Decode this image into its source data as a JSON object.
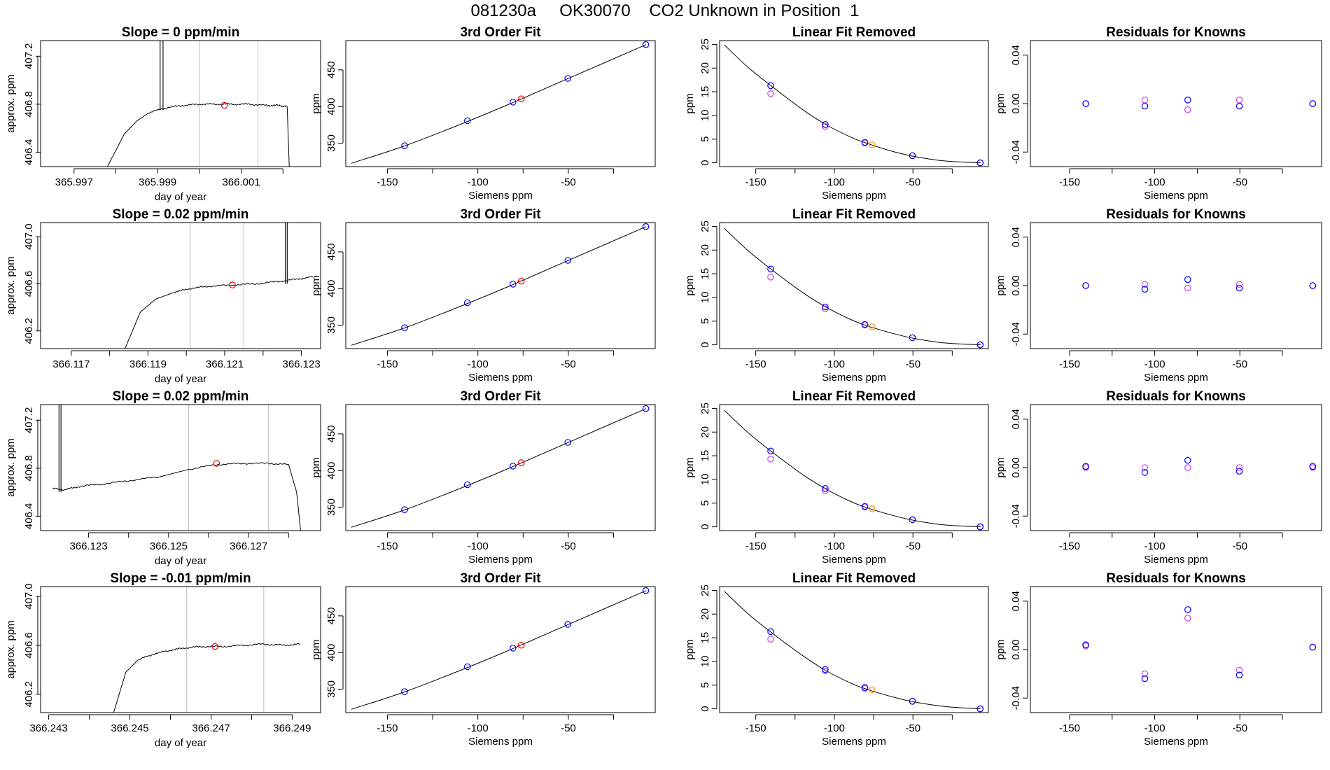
{
  "page_title": "081230a     OK30070    CO2 Unknown in Position  1",
  "colors": {
    "line": "#000000",
    "vline": "#bebebe",
    "blue": "#0000ff",
    "orange": "#ff8c00",
    "violet": "#cc44ee",
    "red": "#ff0000"
  },
  "rows": [
    {
      "slope_title": "Slope =  0  ppm/min",
      "x_ticks": [
        "365.997",
        "365.999",
        "366.001"
      ],
      "y_ticks": [
        "406.4",
        "406.8",
        "407.2"
      ]
    },
    {
      "slope_title": "Slope =  0.02  ppm/min",
      "x_ticks": [
        "366.117",
        "366.119",
        "366.121",
        "366.123"
      ],
      "y_ticks": [
        "406.2",
        "406.6",
        "407.0"
      ]
    },
    {
      "slope_title": "Slope =  0.02  ppm/min",
      "x_ticks": [
        "366.123",
        "366.125",
        "366.127"
      ],
      "y_ticks": [
        "406.4",
        "406.8",
        "407.2"
      ]
    },
    {
      "slope_title": "Slope =  -0.01  ppm/min",
      "x_ticks": [
        "366.243",
        "366.245",
        "366.247",
        "366.249"
      ],
      "y_ticks": [
        "406.2",
        "406.6",
        "407.0"
      ]
    }
  ],
  "fit_panel": {
    "title": "3rd Order Fit",
    "xlabel": "Siemens ppm",
    "ylabel": "ppm",
    "x_ticks": [
      "-150",
      "-100",
      "-50"
    ],
    "y_ticks": [
      "350",
      "400",
      "450"
    ]
  },
  "lin_panel": {
    "title": "Linear Fit Removed",
    "xlabel": "Siemens ppm",
    "ylabel": "ppm",
    "x_ticks": [
      "-150",
      "-100",
      "-50"
    ],
    "y_ticks": [
      "0",
      "5",
      "10",
      "15",
      "20",
      "25"
    ]
  },
  "res_panel": {
    "title": "Residuals for Knowns",
    "xlabel": "Siemens ppm",
    "ylabel": "ppm",
    "x_ticks": [
      "-150",
      "-100",
      "-50"
    ],
    "y_ticks": [
      "-0.04",
      "0.00",
      "0.04"
    ]
  },
  "trace_panel": {
    "xlabel": "day of year",
    "ylabel": "approx. ppm"
  },
  "chart_data": [
    {
      "type": "line",
      "row": 1,
      "xlim": [
        365.9962,
        366.0029
      ],
      "ylim": [
        406.28,
        407.33
      ],
      "vlines": [
        366.0,
        366.0014
      ],
      "marker": [
        366.0006,
        406.79
      ],
      "spikes": [
        [
          365.99906,
          407.33
        ],
        [
          365.99913,
          407.33
        ]
      ],
      "trace": [
        [
          365.9978,
          406.28
        ],
        [
          365.9982,
          406.55
        ],
        [
          365.9985,
          406.66
        ],
        [
          365.9988,
          406.73
        ],
        [
          365.9992,
          406.77
        ],
        [
          365.9996,
          406.79
        ],
        [
          366.0,
          406.8
        ],
        [
          366.0004,
          406.8
        ],
        [
          366.0008,
          406.8
        ],
        [
          366.0012,
          406.8
        ],
        [
          366.0016,
          406.79
        ],
        [
          366.0019,
          406.79
        ],
        [
          366.0021,
          406.78
        ],
        [
          366.00215,
          406.28
        ]
      ]
    },
    {
      "type": "line",
      "row": 2,
      "xlim": [
        366.1162,
        366.1235
      ],
      "ylim": [
        406.05,
        407.12
      ],
      "vlines": [
        366.1201,
        366.1215
      ],
      "marker": [
        366.1212,
        406.59
      ],
      "spikes": [
        [
          366.12258,
          407.12
        ],
        [
          366.12263,
          407.12
        ]
      ],
      "trace": [
        [
          366.1184,
          406.05
        ],
        [
          366.1188,
          406.36
        ],
        [
          366.1192,
          406.47
        ],
        [
          366.1197,
          406.53
        ],
        [
          366.1201,
          406.56
        ],
        [
          366.1206,
          406.58
        ],
        [
          366.1212,
          406.59
        ],
        [
          366.1218,
          406.6
        ],
        [
          366.1224,
          406.62
        ],
        [
          366.1229,
          406.64
        ],
        [
          366.1233,
          406.66
        ]
      ]
    },
    {
      "type": "line",
      "row": 3,
      "xlim": [
        366.1218,
        366.1288
      ],
      "ylim": [
        406.28,
        407.33
      ],
      "vlines": [
        366.1255,
        366.1275
      ],
      "marker": [
        366.1262,
        406.84
      ],
      "spikes": [
        [
          366.12226,
          407.33
        ],
        [
          366.12231,
          407.33
        ]
      ],
      "trace": [
        [
          366.1221,
          406.63
        ],
        [
          366.1224,
          406.62
        ],
        [
          366.1228,
          406.65
        ],
        [
          366.1234,
          406.67
        ],
        [
          366.1241,
          406.7
        ],
        [
          366.1248,
          406.73
        ],
        [
          366.1255,
          406.79
        ],
        [
          366.1262,
          406.83
        ],
        [
          366.1268,
          406.84
        ],
        [
          366.1275,
          406.84
        ],
        [
          366.128,
          406.83
        ],
        [
          366.1282,
          406.6
        ],
        [
          366.1283,
          406.28
        ]
      ]
    },
    {
      "type": "line",
      "row": 4,
      "xlim": [
        366.2428,
        366.2497
      ],
      "ylim": [
        406.05,
        407.08
      ],
      "vlines": [
        366.2464,
        366.2483
      ],
      "marker": [
        366.2471,
        406.59
      ],
      "spikes": [],
      "trace": [
        [
          366.2446,
          406.05
        ],
        [
          366.2449,
          406.38
        ],
        [
          366.2452,
          406.48
        ],
        [
          366.2456,
          406.53
        ],
        [
          366.246,
          406.56
        ],
        [
          366.2464,
          406.58
        ],
        [
          366.2468,
          406.59
        ],
        [
          366.2473,
          406.59
        ],
        [
          366.2478,
          406.6
        ],
        [
          366.2483,
          406.61
        ],
        [
          366.2488,
          406.6
        ],
        [
          366.2492,
          406.61
        ]
      ]
    },
    {
      "type": "scatter",
      "row": 1,
      "panel": "3rd Order Fit",
      "xlim": [
        -173,
        -2
      ],
      "ylim": [
        318,
        490
      ],
      "curve": [
        [
          -170,
          322.5
        ],
        [
          -140,
          346.7
        ],
        [
          -105,
          380.3
        ],
        [
          -80,
          406.1
        ],
        [
          -50,
          438.3
        ],
        [
          -7,
          484.6
        ]
      ],
      "knowns": [
        [
          -140.5,
          346.5
        ],
        [
          -105.8,
          380.6
        ],
        [
          -80.6,
          406.0
        ],
        [
          -50.3,
          438.4
        ],
        [
          -7.2,
          484.6
        ]
      ],
      "unknown": [
        -76.0,
        410.5
      ]
    },
    {
      "type": "scatter",
      "row": 1,
      "panel": "Linear Fit Removed",
      "xlim": [
        -173,
        -2
      ],
      "ylim": [
        -0.8,
        25.8
      ],
      "curve": [
        [
          -170,
          24.9
        ],
        [
          -155,
          20.2
        ],
        [
          -140,
          16.2
        ],
        [
          -120,
          11.2
        ],
        [
          -105,
          8.0
        ],
        [
          -90,
          5.5
        ],
        [
          -80,
          4.2
        ],
        [
          -65,
          2.6
        ],
        [
          -50,
          1.4
        ],
        [
          -30,
          0.4
        ],
        [
          -7,
          0.0
        ]
      ],
      "knowns": [
        [
          -140.5,
          16.3
        ],
        [
          -105.8,
          8.1
        ],
        [
          -80.6,
          4.3
        ],
        [
          -50.3,
          1.5
        ],
        [
          -7.2,
          0.0
        ]
      ],
      "knowns_alt": [
        [
          -140.5,
          14.6
        ],
        [
          -105.8,
          7.7
        ],
        [
          -80.6,
          4.2
        ],
        [
          -50.3,
          1.5
        ],
        [
          -7.2,
          0.0
        ]
      ],
      "unknown": [
        -76.0,
        3.8
      ]
    },
    {
      "type": "scatter",
      "row": 1,
      "panel": "Residuals for Knowns",
      "xlim": [
        -173,
        -2
      ],
      "ylim": [
        -0.052,
        0.052
      ],
      "knowns": [
        [
          -140.5,
          0.0
        ],
        [
          -105.8,
          -0.002
        ],
        [
          -80.6,
          0.003
        ],
        [
          -50.3,
          -0.002
        ],
        [
          -7.2,
          0.0
        ]
      ],
      "knowns_alt": [
        [
          -140.5,
          0.0
        ],
        [
          -105.8,
          0.003
        ],
        [
          -80.6,
          -0.005
        ],
        [
          -50.3,
          0.003
        ],
        [
          -7.2,
          0.0
        ]
      ]
    },
    {
      "type": "scatter",
      "row": 2,
      "panel": "3rd Order Fit",
      "xlim": [
        -173,
        -2
      ],
      "ylim": [
        318,
        490
      ],
      "curve": [
        [
          -170,
          322.5
        ],
        [
          -140,
          346.7
        ],
        [
          -105,
          380.3
        ],
        [
          -80,
          406.1
        ],
        [
          -50,
          438.3
        ],
        [
          -7,
          484.6
        ]
      ],
      "knowns": [
        [
          -140.5,
          346.5
        ],
        [
          -105.8,
          380.6
        ],
        [
          -80.6,
          406.0
        ],
        [
          -50.3,
          438.4
        ],
        [
          -7.2,
          484.6
        ]
      ],
      "unknown": [
        -76.0,
        410.1
      ]
    },
    {
      "type": "scatter",
      "row": 2,
      "panel": "Linear Fit Removed",
      "xlim": [
        -173,
        -2
      ],
      "ylim": [
        -0.8,
        25.8
      ],
      "curve": [
        [
          -170,
          24.6
        ],
        [
          -155,
          19.9
        ],
        [
          -140,
          15.9
        ],
        [
          -120,
          11.0
        ],
        [
          -105,
          7.9
        ],
        [
          -90,
          5.4
        ],
        [
          -80,
          4.1
        ],
        [
          -65,
          2.6
        ],
        [
          -50,
          1.4
        ],
        [
          -30,
          0.4
        ],
        [
          -7,
          0.0
        ]
      ],
      "knowns": [
        [
          -140.5,
          16.0
        ],
        [
          -105.8,
          8.0
        ],
        [
          -80.6,
          4.3
        ],
        [
          -50.3,
          1.5
        ],
        [
          -7.2,
          0.0
        ]
      ],
      "knowns_alt": [
        [
          -140.5,
          14.3
        ],
        [
          -105.8,
          7.6
        ],
        [
          -80.6,
          4.2
        ],
        [
          -50.3,
          1.5
        ],
        [
          -7.2,
          0.0
        ]
      ],
      "unknown": [
        -76.0,
        3.8
      ]
    },
    {
      "type": "scatter",
      "row": 2,
      "panel": "Residuals for Knowns",
      "xlim": [
        -173,
        -2
      ],
      "ylim": [
        -0.052,
        0.052
      ],
      "knowns": [
        [
          -140.5,
          0.0
        ],
        [
          -105.8,
          -0.003
        ],
        [
          -80.6,
          0.005
        ],
        [
          -50.3,
          -0.002
        ],
        [
          -7.2,
          0.0
        ]
      ],
      "knowns_alt": [
        [
          -140.5,
          0.0
        ],
        [
          -105.8,
          0.001
        ],
        [
          -80.6,
          -0.002
        ],
        [
          -50.3,
          0.001
        ],
        [
          -7.2,
          0.0
        ]
      ]
    },
    {
      "type": "scatter",
      "row": 3,
      "panel": "3rd Order Fit",
      "xlim": [
        -173,
        -2
      ],
      "ylim": [
        318,
        490
      ],
      "curve": [
        [
          -170,
          322.5
        ],
        [
          -140,
          346.7
        ],
        [
          -105,
          380.3
        ],
        [
          -80,
          406.1
        ],
        [
          -50,
          438.3
        ],
        [
          -7,
          484.6
        ]
      ],
      "knowns": [
        [
          -140.5,
          346.5
        ],
        [
          -105.8,
          380.6
        ],
        [
          -80.6,
          406.0
        ],
        [
          -50.3,
          438.4
        ],
        [
          -7.2,
          484.6
        ]
      ],
      "unknown": [
        -76.0,
        410.6
      ]
    },
    {
      "type": "scatter",
      "row": 3,
      "panel": "Linear Fit Removed",
      "xlim": [
        -173,
        -2
      ],
      "ylim": [
        -0.8,
        25.8
      ],
      "curve": [
        [
          -170,
          24.6
        ],
        [
          -155,
          19.9
        ],
        [
          -140,
          15.9
        ],
        [
          -120,
          11.0
        ],
        [
          -105,
          7.9
        ],
        [
          -90,
          5.4
        ],
        [
          -80,
          4.1
        ],
        [
          -65,
          2.6
        ],
        [
          -50,
          1.4
        ],
        [
          -30,
          0.4
        ],
        [
          -7,
          0.0
        ]
      ],
      "knowns": [
        [
          -140.5,
          16.0
        ],
        [
          -105.8,
          8.1
        ],
        [
          -80.6,
          4.3
        ],
        [
          -50.3,
          1.5
        ],
        [
          -7.2,
          0.0
        ]
      ],
      "knowns_alt": [
        [
          -140.5,
          14.3
        ],
        [
          -105.8,
          7.6
        ],
        [
          -80.6,
          4.2
        ],
        [
          -50.3,
          1.5
        ],
        [
          -7.2,
          0.0
        ]
      ],
      "unknown": [
        -76.0,
        3.8
      ]
    },
    {
      "type": "scatter",
      "row": 3,
      "panel": "Residuals for Knowns",
      "xlim": [
        -173,
        -2
      ],
      "ylim": [
        -0.052,
        0.052
      ],
      "knowns": [
        [
          -140.5,
          0.001
        ],
        [
          -105.8,
          -0.004
        ],
        [
          -80.6,
          0.006
        ],
        [
          -50.3,
          -0.003
        ],
        [
          -7.2,
          0.001
        ]
      ],
      "knowns_alt": [
        [
          -140.5,
          0.0
        ],
        [
          -105.8,
          0.0
        ],
        [
          -80.6,
          0.0
        ],
        [
          -50.3,
          0.0
        ],
        [
          -7.2,
          0.0
        ]
      ]
    },
    {
      "type": "scatter",
      "row": 4,
      "panel": "3rd Order Fit",
      "xlim": [
        -173,
        -2
      ],
      "ylim": [
        318,
        490
      ],
      "curve": [
        [
          -170,
          322.5
        ],
        [
          -140,
          346.7
        ],
        [
          -105,
          380.3
        ],
        [
          -80,
          406.1
        ],
        [
          -50,
          438.3
        ],
        [
          -7,
          484.6
        ]
      ],
      "knowns": [
        [
          -140.5,
          346.5
        ],
        [
          -105.8,
          380.6
        ],
        [
          -80.6,
          406.0
        ],
        [
          -50.3,
          438.4
        ],
        [
          -7.2,
          484.6
        ]
      ],
      "unknown": [
        -76.0,
        410.0
      ]
    },
    {
      "type": "scatter",
      "row": 4,
      "panel": "Linear Fit Removed",
      "xlim": [
        -173,
        -2
      ],
      "ylim": [
        -0.8,
        25.8
      ],
      "curve": [
        [
          -170,
          24.8
        ],
        [
          -155,
          20.1
        ],
        [
          -140,
          16.1
        ],
        [
          -120,
          11.2
        ],
        [
          -105,
          8.0
        ],
        [
          -90,
          5.5
        ],
        [
          -80,
          4.2
        ],
        [
          -65,
          2.7
        ],
        [
          -50,
          1.5
        ],
        [
          -30,
          0.5
        ],
        [
          -7,
          0.0
        ]
      ],
      "knowns": [
        [
          -140.5,
          16.3
        ],
        [
          -105.8,
          8.3
        ],
        [
          -80.6,
          4.5
        ],
        [
          -50.3,
          1.6
        ],
        [
          -7.2,
          0.0
        ]
      ],
      "knowns_alt": [
        [
          -140.5,
          14.7
        ],
        [
          -105.8,
          8.0
        ],
        [
          -80.6,
          4.3
        ],
        [
          -50.3,
          1.6
        ],
        [
          -7.2,
          0.0
        ]
      ],
      "unknown": [
        -76.0,
        4.0
      ]
    },
    {
      "type": "scatter",
      "row": 4,
      "panel": "Residuals for Knowns",
      "xlim": [
        -173,
        -2
      ],
      "ylim": [
        -0.052,
        0.052
      ],
      "knowns": [
        [
          -140.5,
          0.004
        ],
        [
          -105.8,
          -0.024
        ],
        [
          -80.6,
          0.033
        ],
        [
          -50.3,
          -0.021
        ],
        [
          -7.2,
          0.002
        ]
      ],
      "knowns_alt": [
        [
          -140.5,
          0.003
        ],
        [
          -105.8,
          -0.02
        ],
        [
          -80.6,
          0.026
        ],
        [
          -50.3,
          -0.017
        ],
        [
          -7.2,
          0.002
        ]
      ]
    }
  ]
}
